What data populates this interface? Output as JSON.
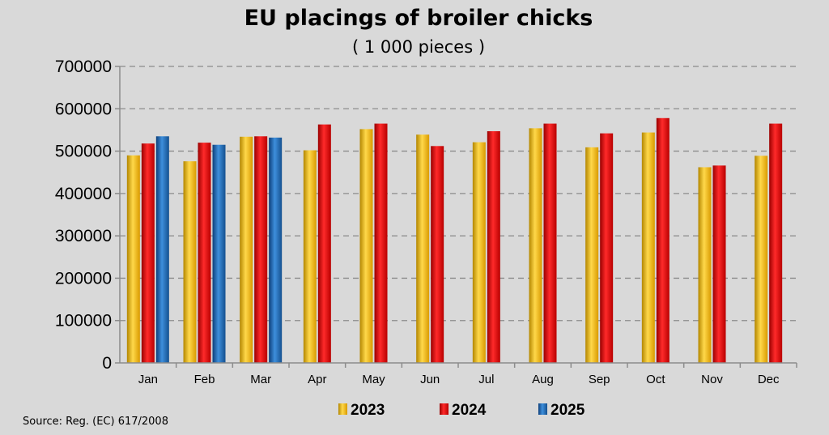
{
  "chart_data": {
    "type": "bar",
    "title": "EU placings of broiler chicks",
    "subtitle": "( 1 000 pieces )",
    "categories": [
      "Jan",
      "Feb",
      "Mar",
      "Apr",
      "May",
      "Jun",
      "Jul",
      "Aug",
      "Sep",
      "Oct",
      "Nov",
      "Dec"
    ],
    "series": [
      {
        "name": "2023",
        "color": "#ffc000",
        "values": [
          490000,
          476000,
          534000,
          502000,
          552000,
          539000,
          521000,
          554000,
          509000,
          544000,
          462000,
          489000
        ]
      },
      {
        "name": "2024",
        "color": "#e80000",
        "values": [
          518000,
          520000,
          535000,
          563000,
          565000,
          512000,
          547000,
          565000,
          542000,
          578000,
          466000,
          565000
        ]
      },
      {
        "name": "2025",
        "color": "#1f6fbf",
        "values": [
          535000,
          515000,
          532000,
          null,
          null,
          null,
          null,
          null,
          null,
          null,
          null,
          null
        ]
      }
    ],
    "yticks": [
      "0",
      "100000",
      "200000",
      "300000",
      "400000",
      "500000",
      "600000",
      "700000"
    ],
    "ylim": [
      0,
      700000
    ],
    "grid": true,
    "legend_position": "bottom",
    "source": "Source: Reg. (EC) 617/2008"
  }
}
